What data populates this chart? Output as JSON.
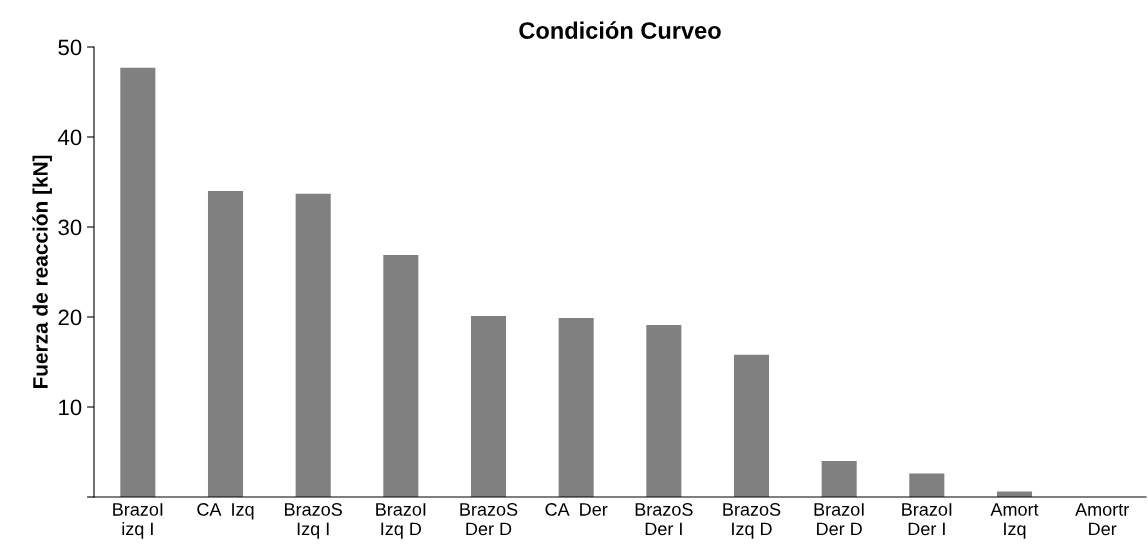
{
  "chart_data": {
    "type": "bar",
    "title": "Condición Curveo",
    "ylabel": "Fuerza de reacción [kN]",
    "categories": [
      "BrazoI\nizq I",
      "CA  Izq",
      "BrazoS\nIzq I",
      "BrazoI\nIzq D",
      "BrazoS\nDer D",
      "CA  Der",
      "BrazoS\nDer I",
      "BrazoS\nIzq D",
      "BrazoI\nDer D",
      "BrazoI\nDer I",
      "Amort\nIzq",
      "Amortr\nDer"
    ],
    "values": [
      47.7,
      34.0,
      33.7,
      26.9,
      20.1,
      19.9,
      19.1,
      15.8,
      4.0,
      2.6,
      0.6,
      0
    ],
    "color": "#808080",
    "ylim": [
      0,
      50
    ],
    "yticks": [
      {
        "value": 0,
        "label": null
      },
      10,
      20,
      30,
      40,
      50
    ],
    "grid": false,
    "legend": false
  }
}
